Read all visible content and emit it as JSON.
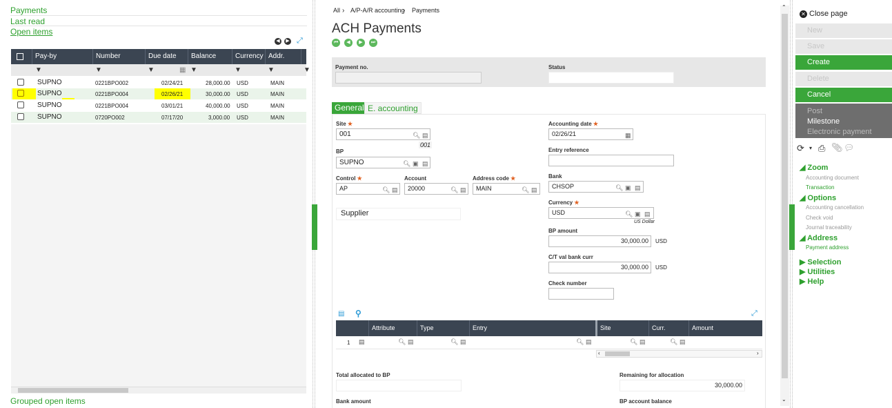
{
  "left": {
    "links": [
      "Payments",
      "Last read",
      "Open items"
    ],
    "footer_link": "Grouped open items",
    "table": {
      "columns": [
        "Pay-by",
        "Number",
        "Due date",
        "Balance",
        "Currency",
        "Addr."
      ],
      "rows": [
        {
          "payby": "SUPNO",
          "number": "0221BPO002",
          "due": "02/24/21",
          "balance": "28,000.00",
          "currency": "USD",
          "addr": "MAIN"
        },
        {
          "payby": "SUPNO",
          "number": "0221BPO004",
          "due": "02/26/21",
          "balance": "30,000.00",
          "currency": "USD",
          "addr": "MAIN"
        },
        {
          "payby": "SUPNO",
          "number": "0221BPO004",
          "due": "03/01/21",
          "balance": "40,000.00",
          "currency": "USD",
          "addr": "MAIN"
        },
        {
          "payby": "SUPNO",
          "number": "0720PO002",
          "due": "07/17/20",
          "balance": "3,000.00",
          "currency": "USD",
          "addr": "MAIN"
        }
      ]
    }
  },
  "center": {
    "breadcrumb": [
      "All",
      "A/P-A/R accounting",
      "Payments"
    ],
    "title": "ACH Payments",
    "header": {
      "payment_no_label": "Payment no.",
      "status_label": "Status",
      "payment_no_value": "",
      "status_value": ""
    },
    "tabs": [
      "General",
      "E. accounting"
    ],
    "fields": {
      "site_label": "Site",
      "site_value": "001",
      "site_desc": "001",
      "bp_label": "BP",
      "bp_value": "SUPNO",
      "control_label": "Control",
      "control_value": "AP",
      "account_label": "Account",
      "account_value": "20000",
      "address_code_label": "Address code",
      "address_code_value": "MAIN",
      "supplier_label": "Supplier",
      "accounting_date_label": "Accounting date",
      "accounting_date_value": "02/26/21",
      "entry_reference_label": "Entry reference",
      "entry_reference_value": "",
      "bank_label": "Bank",
      "bank_value": "CHSOP",
      "currency_label": "Currency",
      "currency_value": "USD",
      "currency_desc": "US Dollar",
      "bp_amount_label": "BP amount",
      "bp_amount_value": "30,000.00",
      "bp_amount_cur": "USD",
      "ct_val_label": "C/T val bank curr",
      "ct_val_value": "30,000.00",
      "ct_val_cur": "USD",
      "check_number_label": "Check number",
      "check_number_value": ""
    },
    "subgrid": {
      "columns": [
        "Attribute",
        "Type",
        "Entry",
        "Site",
        "Curr.",
        "Amount"
      ],
      "row_num": "1"
    },
    "bottom": {
      "total_allocated_label": "Total allocated to BP",
      "total_allocated_value": "",
      "remaining_label": "Remaining for allocation",
      "remaining_value": "30,000.00",
      "bank_amount_label": "Bank amount",
      "bp_account_balance_label": "BP account balance"
    }
  },
  "right": {
    "close": "Close page",
    "buttons": [
      {
        "label": "New",
        "state": "disabled"
      },
      {
        "label": "Save",
        "state": "disabled"
      },
      {
        "label": "Create",
        "state": "active"
      },
      {
        "label": "Delete",
        "state": "disabled"
      },
      {
        "label": "Cancel",
        "state": "active"
      }
    ],
    "dark": [
      "Post",
      "Milestone",
      "Electronic payment"
    ],
    "sections": {
      "zoom": "Zoom",
      "zoom_items": [
        "Accounting document",
        "Transaction"
      ],
      "options": "Options",
      "options_items": [
        "Accounting cancellation",
        "Check void",
        "Journal traceability"
      ],
      "address": "Address",
      "address_items": [
        "Payment address"
      ],
      "selection": "Selection",
      "utilities": "Utilities",
      "help": "Help"
    }
  },
  "colors": {
    "accent": "#3aa63a",
    "header": "#3b4552",
    "highlight": "#ffff00"
  }
}
